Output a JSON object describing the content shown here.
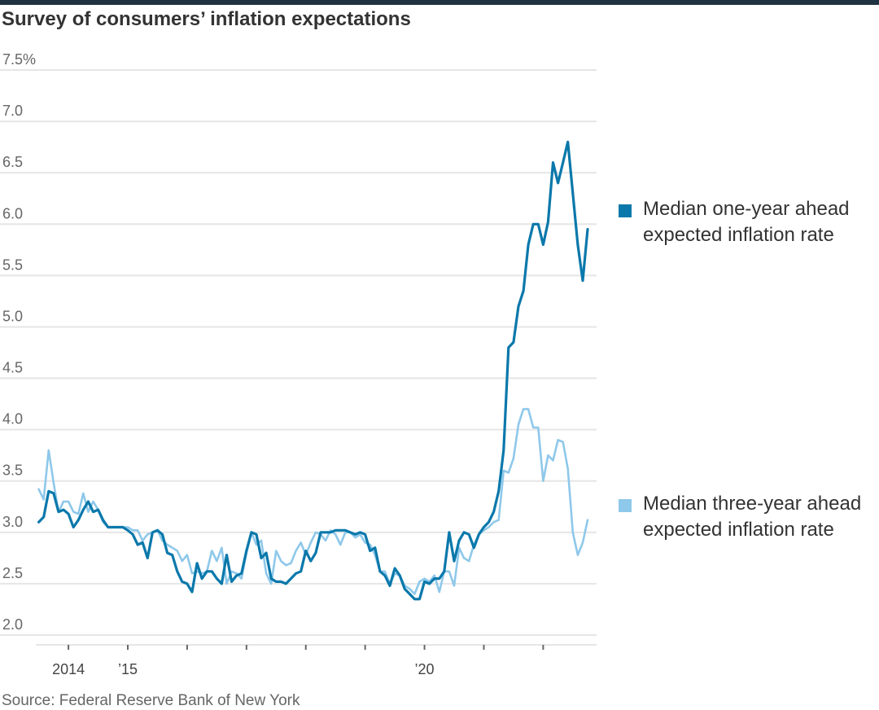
{
  "title": "Survey of consumers’ inflation expectations",
  "source": "Source: Federal Reserve Bank of New York",
  "colors": {
    "one_year": "#0a78ab",
    "three_year": "#8ec8ea",
    "grid": "#e6e6e6",
    "axis": "#666666"
  },
  "chart_data": {
    "type": "line",
    "title": "Survey of consumers’ inflation expectations",
    "xlabel": "",
    "ylabel": "",
    "ylim": [
      2.0,
      7.5
    ],
    "xlim": [
      2013.45,
      2022.9
    ],
    "y_ticks": [
      {
        "value": 7.5,
        "label": "7.5%"
      },
      {
        "value": 7.0,
        "label": "7.0"
      },
      {
        "value": 6.5,
        "label": "6.5"
      },
      {
        "value": 6.0,
        "label": "6.0"
      },
      {
        "value": 5.5,
        "label": "5.5"
      },
      {
        "value": 5.0,
        "label": "5.0"
      },
      {
        "value": 4.5,
        "label": "4.5"
      },
      {
        "value": 4.0,
        "label": "4.0"
      },
      {
        "value": 3.5,
        "label": "3.5"
      },
      {
        "value": 3.0,
        "label": "3.0"
      },
      {
        "value": 2.5,
        "label": "2.5"
      },
      {
        "value": 2.0,
        "label": "2.0"
      }
    ],
    "x_ticks": [
      2014,
      2015,
      2016,
      2017,
      2018,
      2019,
      2020,
      2021,
      2022
    ],
    "x_tick_labels": [
      {
        "value": 2014,
        "label": "2014"
      },
      {
        "value": 2015,
        "label": "’15"
      },
      {
        "value": 2020,
        "label": "’20"
      }
    ],
    "grid": true,
    "legend": "right",
    "series": [
      {
        "name": "Median one-year ahead expected inflation rate",
        "color": "#0a78ab",
        "x_start": 2013.5,
        "x_step": 0.08333,
        "values": [
          3.1,
          3.15,
          3.4,
          3.38,
          3.2,
          3.22,
          3.18,
          3.05,
          3.12,
          3.22,
          3.3,
          3.2,
          3.22,
          3.12,
          3.05,
          3.05,
          3.05,
          3.05,
          3.02,
          2.98,
          2.88,
          2.9,
          2.75,
          3.0,
          3.02,
          2.98,
          2.8,
          2.78,
          2.62,
          2.52,
          2.5,
          2.42,
          2.7,
          2.55,
          2.62,
          2.62,
          2.55,
          2.5,
          2.78,
          2.52,
          2.58,
          2.6,
          2.82,
          3.0,
          2.98,
          2.75,
          2.8,
          2.55,
          2.52,
          2.52,
          2.5,
          2.55,
          2.6,
          2.62,
          2.82,
          2.72,
          2.8,
          3.0,
          3.0,
          3.0,
          3.02,
          3.02,
          3.02,
          3.0,
          2.98,
          3.0,
          2.98,
          2.82,
          2.85,
          2.62,
          2.58,
          2.48,
          2.65,
          2.58,
          2.45,
          2.4,
          2.35,
          2.35,
          2.52,
          2.5,
          2.55,
          2.55,
          2.62,
          3.0,
          2.72,
          2.92,
          3.0,
          2.98,
          2.85,
          2.98,
          3.05,
          3.1,
          3.2,
          3.4,
          3.8,
          4.8,
          4.85,
          5.2,
          5.35,
          5.8,
          6.0,
          6.0,
          5.8,
          6.02,
          6.6,
          6.4,
          6.6,
          6.8,
          6.3,
          5.8,
          5.45,
          5.95
        ]
      },
      {
        "name": "Median three-year ahead expected inflation rate",
        "color": "#8ec8ea",
        "x_start": 2013.5,
        "x_step": 0.08333,
        "values": [
          3.42,
          3.32,
          3.8,
          3.48,
          3.2,
          3.3,
          3.3,
          3.2,
          3.18,
          3.38,
          3.2,
          3.3,
          3.22,
          3.1,
          3.05,
          3.05,
          3.05,
          3.05,
          3.05,
          3.02,
          3.02,
          2.92,
          2.98,
          3.0,
          3.02,
          2.92,
          2.88,
          2.85,
          2.82,
          2.72,
          2.78,
          2.6,
          2.62,
          2.6,
          2.62,
          2.82,
          2.72,
          2.85,
          2.5,
          2.62,
          2.6,
          2.55,
          2.8,
          3.0,
          2.88,
          2.92,
          2.6,
          2.5,
          2.82,
          2.72,
          2.68,
          2.7,
          2.82,
          2.9,
          2.78,
          2.9,
          3.0,
          2.98,
          2.92,
          3.02,
          2.98,
          2.88,
          3.0,
          3.0,
          2.95,
          2.98,
          2.9,
          2.88,
          2.78,
          2.62,
          2.62,
          2.5,
          2.6,
          2.58,
          2.48,
          2.45,
          2.4,
          2.52,
          2.55,
          2.52,
          2.58,
          2.42,
          2.62,
          2.62,
          2.48,
          2.85,
          2.75,
          2.72,
          2.88,
          2.98,
          3.02,
          3.05,
          3.1,
          3.12,
          3.6,
          3.58,
          3.72,
          4.05,
          4.2,
          4.2,
          4.02,
          4.02,
          3.5,
          3.75,
          3.7,
          3.9,
          3.88,
          3.62,
          3.0,
          2.78,
          2.9,
          3.12
        ]
      }
    ]
  }
}
